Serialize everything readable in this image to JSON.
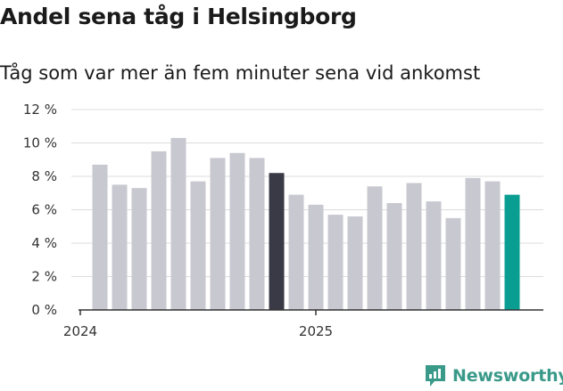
{
  "title": "Andel sena tåg i Helsingborg",
  "subtitle": "Tåg som var mer än fem minuter sena vid ankomst",
  "logo_text": "Newsworthy",
  "colors": {
    "default_bar": "#c8c8d0",
    "highlight_bar": "#3a3a46",
    "latest_bar": "#0a9e92",
    "grid": "#dcdcdc",
    "logo": "#3a9a8a"
  },
  "chart_data": {
    "type": "bar",
    "title": "Andel sena tåg i Helsingborg",
    "subtitle": "Tåg som var mer än fem minuter sena vid ankomst",
    "xlabel": "",
    "ylabel": "",
    "ylim": [
      0,
      12
    ],
    "y_ticks": [
      0,
      2,
      4,
      6,
      8,
      10,
      12
    ],
    "y_tick_labels": [
      "0 %",
      "2 %",
      "4 %",
      "6 %",
      "8 %",
      "10 %",
      "12 %"
    ],
    "x_tick_labels": [
      {
        "label": "2024",
        "index": 0
      },
      {
        "label": "2025",
        "index": 12
      }
    ],
    "grid": true,
    "values": [
      8.7,
      7.5,
      7.3,
      9.5,
      10.3,
      7.7,
      9.1,
      9.4,
      9.1,
      8.2,
      6.9,
      6.3,
      5.7,
      5.6,
      7.4,
      6.4,
      7.6,
      6.5,
      5.5,
      7.9,
      7.7,
      6.9
    ],
    "bar_colors": [
      "default",
      "default",
      "default",
      "default",
      "default",
      "default",
      "default",
      "default",
      "default",
      "highlight",
      "default",
      "default",
      "default",
      "default",
      "default",
      "default",
      "default",
      "default",
      "default",
      "default",
      "default",
      "latest"
    ]
  }
}
